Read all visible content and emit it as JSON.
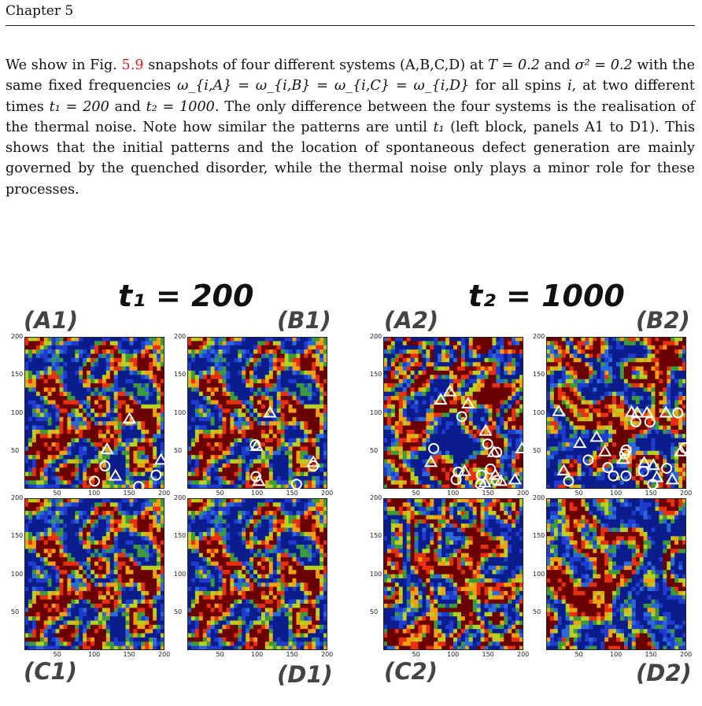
{
  "header": {
    "chapter": "Chapter 5"
  },
  "paragraph": {
    "p1": "We show in Fig. ",
    "ref": "5.9",
    "p2": " snapshots of four different systems (A,B,C,D) at ",
    "temp_eq": "T = 0.2",
    "p3": " and ",
    "sigma_eq": "σ² = 0.2",
    "p4": " with the same fixed frequencies ",
    "omega_eq": "ω_{i,A} = ω_{i,B} = ω_{i,C} = ω_{i,D}",
    "p5": " for all spins ",
    "spin_i": "i",
    "p6": ", at two different times ",
    "t1_eq": "t₁ = 200",
    "p7": " and ",
    "t2_eq": "t₂ = 1000",
    "p8": ". The only difference between the four systems is the realisation of the thermal noise. Note how similar the patterns are until ",
    "t1_short": "t₁",
    "p9": " (left block, panels A1 to D1). This shows that the initial patterns and the location of spontaneous defect generation are mainly governed by the quenched disorder, while the thermal noise only plays a minor role for these processes."
  },
  "figure": {
    "time_left": "t₁ = 200",
    "time_right": "t₂ = 1000",
    "labels": {
      "A1": "(A1)",
      "B1": "(B1)",
      "C1": "(C1)",
      "D1": "(D1)",
      "A2": "(A2)",
      "B2": "(B2)",
      "C2": "(C2)",
      "D2": "(D2)"
    },
    "x_ticks": [
      "50",
      "100",
      "150",
      "200"
    ],
    "y_ticks": [
      "200",
      "150",
      "100",
      "50"
    ],
    "colormap": [
      "#0b1d8c",
      "#1f3bd0",
      "#2a6ad8",
      "#3c9a3a",
      "#b8d020",
      "#f0a010",
      "#e83010",
      "#6a0000"
    ]
  },
  "defects": {
    "A1": {
      "circles": [
        [
          115,
          30
        ],
        [
          100,
          10
        ],
        [
          188,
          18
        ],
        [
          163,
          3
        ]
      ],
      "triangles": [
        [
          150,
          92
        ],
        [
          118,
          52
        ],
        [
          195,
          38
        ],
        [
          130,
          17
        ]
      ]
    },
    "B1": {
      "circles": [
        [
          97,
          58
        ],
        [
          98,
          16
        ],
        [
          180,
          30
        ],
        [
          156,
          6
        ]
      ],
      "triangles": [
        [
          118,
          100
        ],
        [
          99,
          56
        ],
        [
          180,
          35
        ],
        [
          102,
          10
        ]
      ]
    },
    "A2": {
      "circles": [
        [
          112,
          95
        ],
        [
          72,
          53
        ],
        [
          149,
          59
        ],
        [
          162,
          48
        ],
        [
          153,
          26
        ],
        [
          140,
          18
        ],
        [
          162,
          11
        ],
        [
          107,
          22
        ],
        [
          104,
          12
        ],
        [
          139,
          6
        ]
      ],
      "triangles": [
        [
          95,
          128
        ],
        [
          121,
          112
        ],
        [
          82,
          117
        ],
        [
          198,
          53
        ],
        [
          146,
          76
        ],
        [
          158,
          48
        ],
        [
          68,
          35
        ],
        [
          116,
          23
        ],
        [
          160,
          18
        ],
        [
          145,
          8
        ],
        [
          168,
          10
        ],
        [
          188,
          12
        ]
      ]
    },
    "B2": {
      "circles": [
        [
          188,
          100
        ],
        [
          128,
          88
        ],
        [
          148,
          88
        ],
        [
          114,
          51
        ],
        [
          112,
          46
        ],
        [
          60,
          38
        ],
        [
          88,
          28
        ],
        [
          96,
          17
        ],
        [
          114,
          17
        ],
        [
          139,
          23
        ],
        [
          198,
          54
        ],
        [
          172,
          27
        ],
        [
          152,
          6
        ],
        [
          32,
          10
        ]
      ],
      "triangles": [
        [
          122,
          101
        ],
        [
          130,
          100
        ],
        [
          144,
          100
        ],
        [
          171,
          100
        ],
        [
          18,
          102
        ],
        [
          72,
          68
        ],
        [
          48,
          60
        ],
        [
          84,
          49
        ],
        [
          110,
          39
        ],
        [
          192,
          49
        ],
        [
          140,
          34
        ],
        [
          153,
          31
        ],
        [
          158,
          15
        ],
        [
          180,
          12
        ],
        [
          25,
          24
        ]
      ]
    }
  }
}
